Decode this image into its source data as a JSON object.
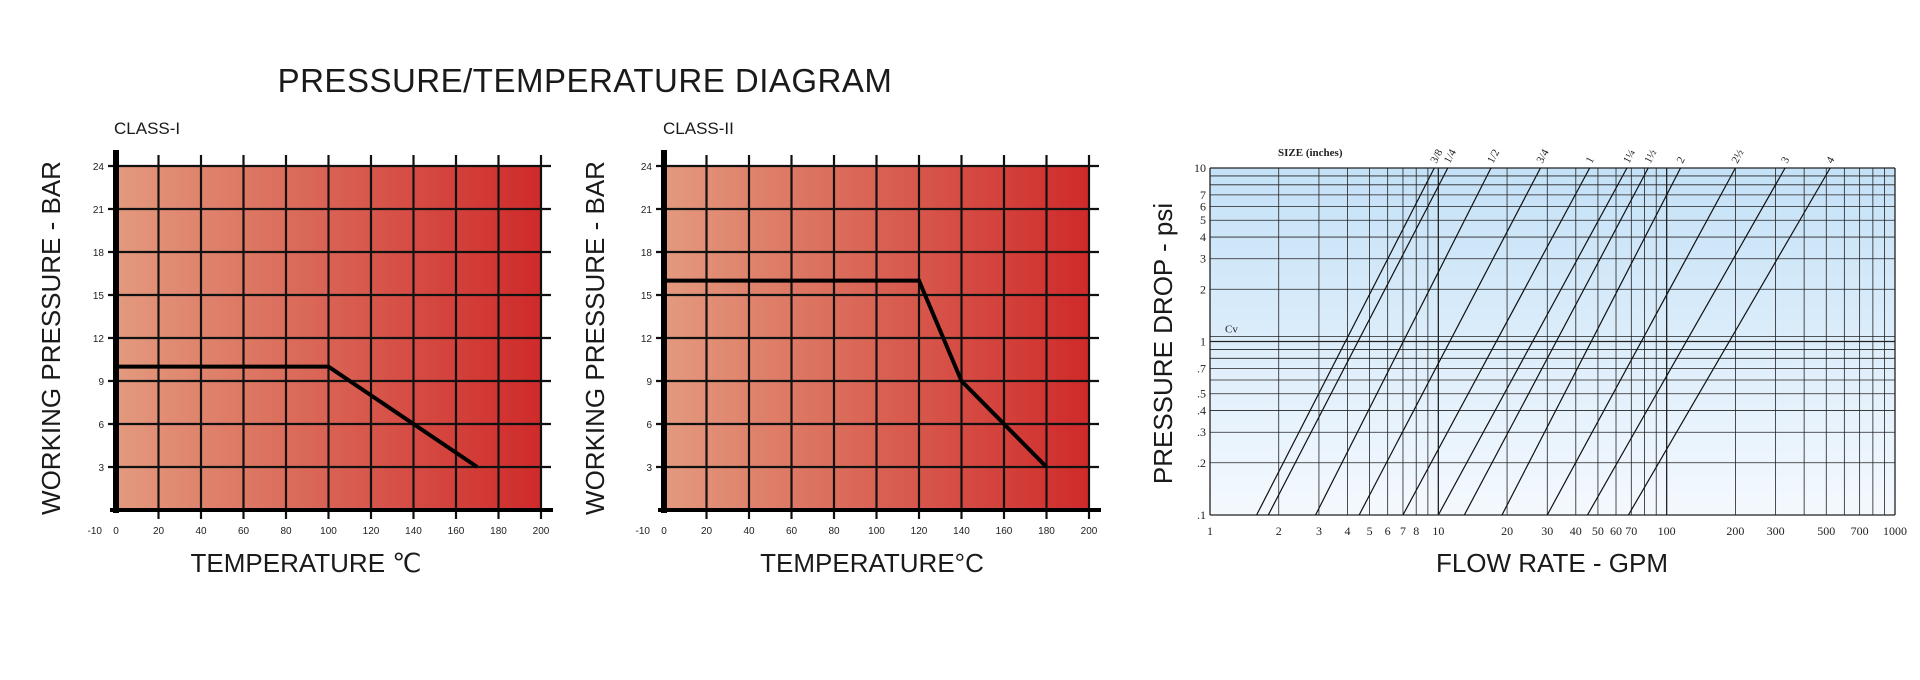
{
  "title": "PRESSURE/TEMPERATURE DIAGRAM",
  "chart_data": [
    {
      "type": "line",
      "subtitle": "CLASS-I",
      "xlabel": "TEMPERATURE ℃",
      "ylabel": "WORKING PRESSURE - BAR",
      "x_ticks": [
        "-10",
        "0",
        "20",
        "40",
        "60",
        "80",
        "100",
        "120",
        "140",
        "160",
        "180",
        "200"
      ],
      "y_ticks": [
        "3",
        "6",
        "9",
        "12",
        "15",
        "18",
        "21",
        "24"
      ],
      "xlim": [
        0,
        200
      ],
      "ylim": [
        0,
        24
      ],
      "grid": true,
      "gradient": [
        "#e39a7e",
        "#cf2a2a"
      ],
      "series": [
        {
          "x": [
            0,
            100,
            170
          ],
          "y": [
            10,
            10,
            3
          ]
        }
      ]
    },
    {
      "type": "line",
      "subtitle": "CLASS-II",
      "xlabel": "TEMPERATURE°C",
      "ylabel": "WORKING PRESSURE - BAR",
      "x_ticks": [
        "-10",
        "0",
        "20",
        "40",
        "60",
        "80",
        "100",
        "120",
        "140",
        "160",
        "180",
        "200"
      ],
      "y_ticks": [
        "3",
        "6",
        "9",
        "12",
        "15",
        "18",
        "21",
        "24"
      ],
      "xlim": [
        0,
        200
      ],
      "ylim": [
        0,
        24
      ],
      "grid": true,
      "gradient": [
        "#e39a7e",
        "#cf2a2a"
      ],
      "series": [
        {
          "x": [
            0,
            120,
            140,
            180
          ],
          "y": [
            16,
            16,
            9,
            3
          ]
        }
      ]
    },
    {
      "type": "line",
      "scale": "log-log",
      "xlabel": "FLOW RATE - GPM",
      "ylabel": "PRESSURE DROP - psi",
      "size_label": "SIZE  (inches)",
      "cv_label": "Cv",
      "x_ticks": [
        "1",
        "2",
        "3",
        "4",
        "5",
        "6",
        "7",
        "8",
        "10",
        "20",
        "30",
        "40",
        "50",
        "60",
        "70",
        "100",
        "200",
        "300",
        "500",
        "700",
        "1000"
      ],
      "y_ticks": [
        ".1",
        ".2",
        ".3",
        ".4",
        ".5",
        ".7",
        "1",
        "2",
        "3",
        "4",
        "5",
        "6",
        "7",
        "10"
      ],
      "xlim": [
        1,
        1000
      ],
      "ylim": [
        0.1,
        10
      ],
      "grid": true,
      "gradient": [
        "#c4e1f7",
        "#f4f9fe"
      ],
      "series": [
        {
          "name": "3/8",
          "x": [
            1.6,
            9.6
          ],
          "y": [
            0.1,
            10
          ]
        },
        {
          "name": "1/4",
          "x": [
            1.8,
            11.0
          ],
          "y": [
            0.1,
            10
          ]
        },
        {
          "name": "1/2",
          "x": [
            2.9,
            17.0
          ],
          "y": [
            0.1,
            10
          ]
        },
        {
          "name": "3/4",
          "x": [
            4.5,
            28.0
          ],
          "y": [
            0.1,
            10
          ]
        },
        {
          "name": "1",
          "x": [
            7.0,
            46.0
          ],
          "y": [
            0.1,
            10
          ]
        },
        {
          "name": "1¼",
          "x": [
            10.0,
            67.0
          ],
          "y": [
            0.1,
            10
          ]
        },
        {
          "name": "1½",
          "x": [
            13.0,
            83.0
          ],
          "y": [
            0.1,
            10
          ]
        },
        {
          "name": "2",
          "x": [
            19.0,
            115.0
          ],
          "y": [
            0.1,
            10
          ]
        },
        {
          "name": "2½",
          "x": [
            30.0,
            200.0
          ],
          "y": [
            0.1,
            10
          ]
        },
        {
          "name": "3",
          "x": [
            45.0,
            330.0
          ],
          "y": [
            0.1,
            10
          ]
        },
        {
          "name": "4",
          "x": [
            68.0,
            520.0
          ],
          "y": [
            0.1,
            10
          ]
        }
      ]
    }
  ]
}
